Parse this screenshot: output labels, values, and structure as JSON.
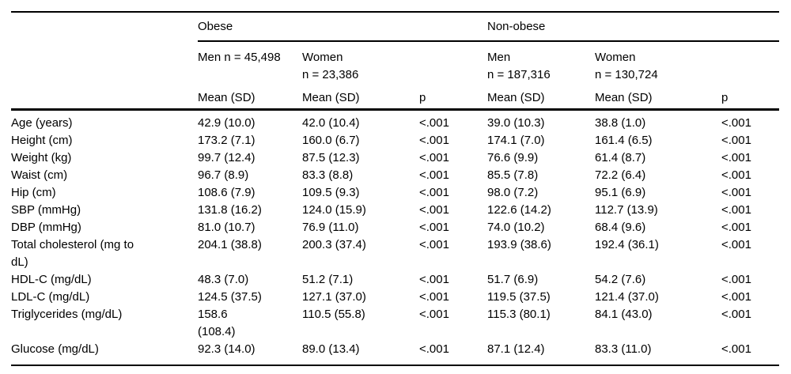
{
  "table": {
    "groups": {
      "obese": "Obese",
      "nonobese": "Non-obese"
    },
    "col_headers": {
      "obese_men": "Men n = 45,498",
      "obese_women": "Women\nn = 23,386",
      "nonobese_men": "Men\nn = 187,316",
      "nonobese_women": "Women\nn = 130,724"
    },
    "labels": {
      "mean_sd": "Mean (SD)",
      "p": "p"
    },
    "rows": [
      {
        "label": "Age (years)",
        "cells": [
          "42.9 (10.0)",
          "42.0 (10.4)",
          "<.001",
          "39.0 (10.3)",
          "38.8 (1.0)",
          "<.001"
        ]
      },
      {
        "label": "Height (cm)",
        "cells": [
          "173.2 (7.1)",
          "160.0 (6.7)",
          "<.001",
          "174.1 (7.0)",
          "161.4 (6.5)",
          "<.001"
        ]
      },
      {
        "label": "Weight (kg)",
        "cells": [
          "99.7 (12.4)",
          "87.5 (12.3)",
          "<.001",
          "76.6 (9.9)",
          "61.4 (8.7)",
          "<.001"
        ]
      },
      {
        "label": "Waist (cm)",
        "cells": [
          "96.7 (8.9)",
          "83.3 (8.8)",
          "<.001",
          "85.5 (7.8)",
          "72.2 (6.4)",
          "<.001"
        ]
      },
      {
        "label": "Hip (cm)",
        "cells": [
          "108.6 (7.9)",
          "109.5 (9.3)",
          "<.001",
          "98.0 (7.2)",
          "95.1 (6.9)",
          "<.001"
        ]
      },
      {
        "label": "SBP (mmHg)",
        "cells": [
          "131.8 (16.2)",
          "124.0 (15.9)",
          "<.001",
          "122.6 (14.2)",
          "112.7 (13.9)",
          "<.001"
        ]
      },
      {
        "label": "DBP (mmHg)",
        "cells": [
          "81.0 (10.7)",
          "76.9 (11.0)",
          "<.001",
          "74.0 (10.2)",
          "68.4 (9.6)",
          "<.001"
        ]
      },
      {
        "label": "Total cholesterol (mg to\ndL)",
        "cells": [
          "204.1 (38.8)",
          "200.3 (37.4)",
          "<.001",
          "193.9 (38.6)",
          "192.4 (36.1)",
          "<.001"
        ]
      },
      {
        "label": "HDL-C (mg/dL)",
        "cells": [
          "48.3 (7.0)",
          "51.2 (7.1)",
          "<.001",
          "51.7 (6.9)",
          "54.2 (7.6)",
          "<.001"
        ]
      },
      {
        "label": "LDL-C (mg/dL)",
        "cells": [
          "124.5 (37.5)",
          "127.1 (37.0)",
          "<.001",
          "119.5 (37.5)",
          "121.4 (37.0)",
          "<.001"
        ]
      },
      {
        "label": "Triglycerides (mg/dL)",
        "cells": [
          "158.6\n(108.4)",
          "110.5 (55.8)",
          "<.001",
          "115.3 (80.1)",
          "84.1 (43.0)",
          "<.001"
        ]
      },
      {
        "label": "Glucose (mg/dL)",
        "cells": [
          "92.3 (14.0)",
          "89.0 (13.4)",
          "<.001",
          "87.1 (12.4)",
          "83.3 (11.0)",
          "<.001"
        ]
      }
    ]
  }
}
